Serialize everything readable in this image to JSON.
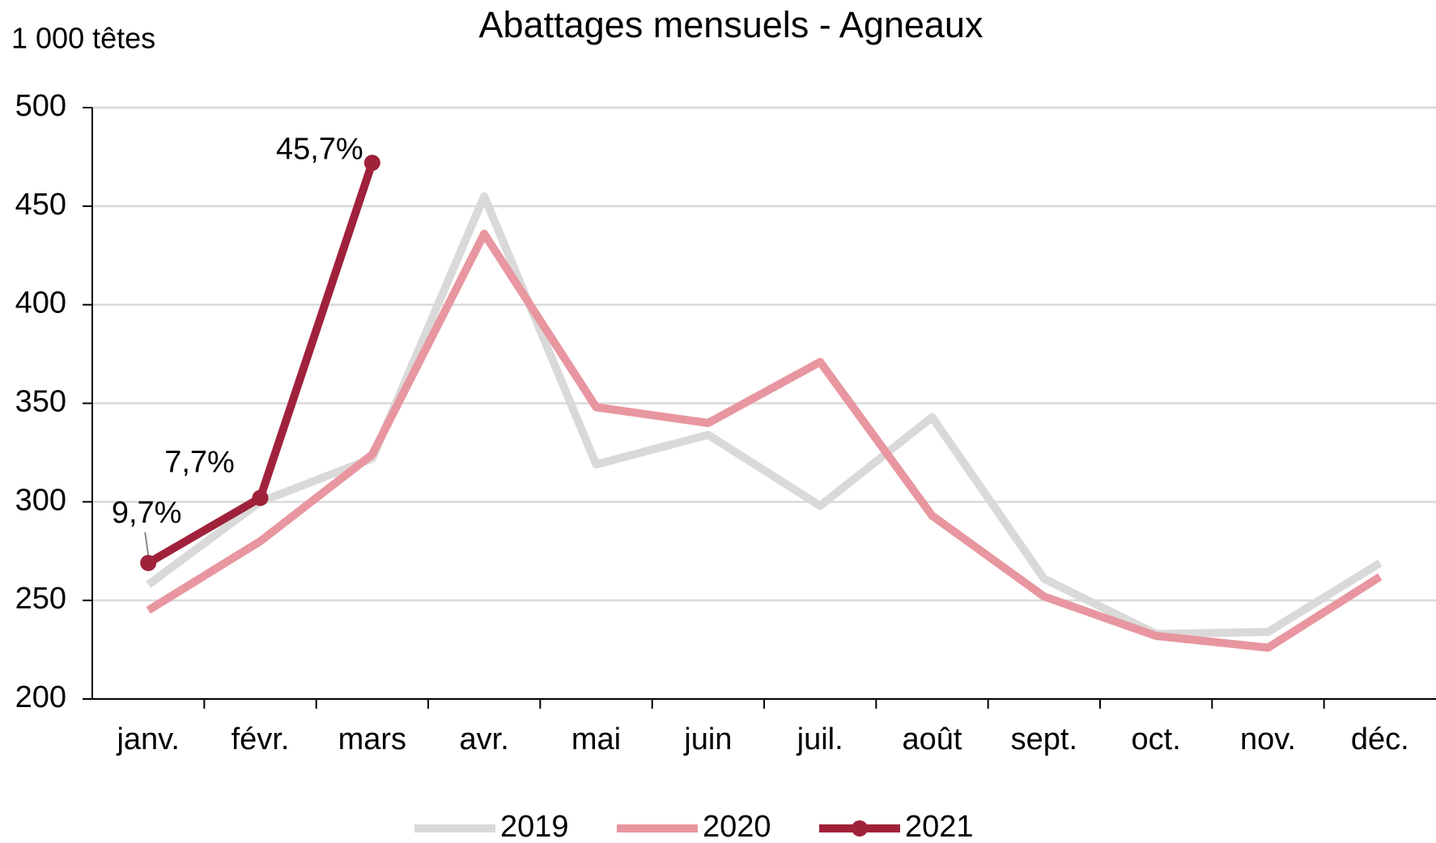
{
  "chart_data": {
    "type": "line",
    "title": "Abattages mensuels  - Agneaux",
    "y_label": "1 000 têtes",
    "categories": [
      "janv.",
      "févr.",
      "mars",
      "avr.",
      "mai",
      "juin",
      "juil.",
      "août",
      "sept.",
      "oct.",
      "nov.",
      "déc."
    ],
    "series": [
      {
        "name": "2019",
        "color": "#d9d9d9",
        "values": [
          258,
          300,
          322,
          455,
          319,
          334,
          298,
          343,
          261,
          233,
          234,
          269
        ]
      },
      {
        "name": "2020",
        "color": "#e8969f",
        "values": [
          245,
          280,
          324,
          436,
          348,
          340,
          371,
          293,
          252,
          232,
          226,
          262
        ]
      },
      {
        "name": "2021",
        "color": "#a0213a",
        "markers": true,
        "values": [
          269,
          302,
          472,
          null,
          null,
          null,
          null,
          null,
          null,
          null,
          null,
          null
        ]
      }
    ],
    "annotations": [
      "9,7%",
      "7,7%",
      "45,7%"
    ],
    "ylim": [
      200,
      500
    ],
    "yticks": [
      200,
      250,
      300,
      350,
      400,
      450,
      500
    ],
    "grid": true,
    "legend": "bottom"
  }
}
